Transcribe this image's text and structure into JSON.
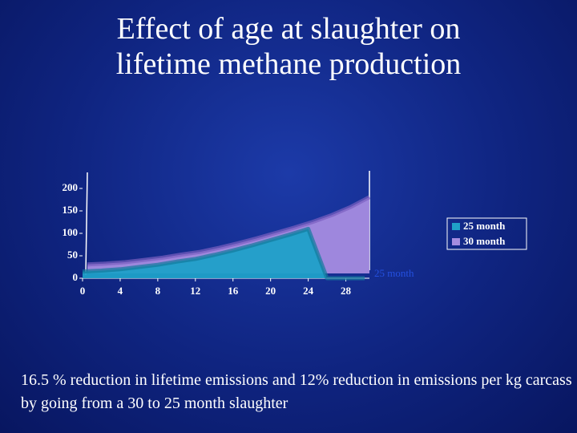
{
  "chart_data": {
    "type": "area",
    "title": "Effect of age at slaughter on lifetime methane production",
    "x": [
      0,
      2,
      4,
      6,
      8,
      10,
      12,
      14,
      16,
      18,
      20,
      22,
      24,
      26,
      28,
      30
    ],
    "series": [
      {
        "name": "25 month",
        "color": "#1fa0c8",
        "values": [
          15,
          17,
          20,
          25,
          30,
          37,
          43,
          52,
          62,
          73,
          85,
          97,
          110,
          0,
          0,
          0
        ]
      },
      {
        "name": "30 month",
        "color": "#a58ce0",
        "values": [
          20,
          22,
          25,
          30,
          35,
          42,
          48,
          57,
          67,
          78,
          90,
          102,
          115,
          130,
          148,
          170
        ]
      }
    ],
    "xlim": [
      0,
      30
    ],
    "xticks": [
      0,
      4,
      8,
      12,
      16,
      20,
      24,
      28
    ],
    "ylim": [
      0,
      200
    ],
    "yticks": [
      0,
      50,
      100,
      150,
      200
    ],
    "annotation": "25 month",
    "note": "16.5 % reduction in lifetime emissions and 12% reduction in emissions per kg carcass by going from a 30 to 25 month slaughter"
  }
}
